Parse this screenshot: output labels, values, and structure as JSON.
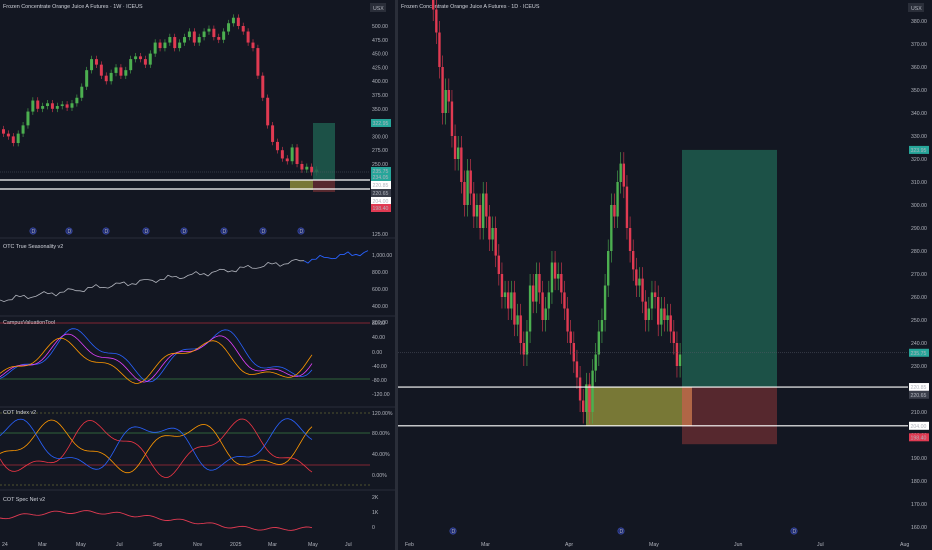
{
  "colors": {
    "background": "#131722",
    "grid": "#1e222d",
    "up": "#4caf50",
    "down": "#e03a52",
    "long_tp": "#1f5c4e",
    "long_sl": "#5e2a30",
    "entry_zone": "#8b8a3a",
    "seasonality": "#b2b5be",
    "seasonality_future": "#2962ff",
    "purple": "#e040fb",
    "orange": "#ff9800",
    "white": "#ffffff",
    "red_line": "#f23645",
    "green_line": "#4caf50",
    "blue_line": "#2962ff"
  },
  "left_panel": {
    "title": "Frozen Concentrate Orange Juice A Futures · 1W · ICEUS",
    "currency": "USX",
    "price_axis": [
      "500.00",
      "475.00",
      "450.00",
      "425.00",
      "400.00",
      "375.00",
      "350.00",
      "325.00",
      "300.00",
      "275.00",
      "250.00"
    ],
    "price_tags": [
      {
        "text": "322.95",
        "kind": "green"
      },
      {
        "text": "235.75",
        "kind": "green"
      },
      {
        "text": "234.05",
        "kind": "green"
      },
      {
        "text": "220.85",
        "kind": "white"
      },
      {
        "text": "220.65",
        "kind": "gray"
      },
      {
        "text": "204.00",
        "kind": "white"
      },
      {
        "text": "198.40",
        "kind": "red"
      }
    ],
    "indicators": [
      {
        "name": "OTC True Seasonality v2",
        "axis": [
          "1,000.00",
          "800.00",
          "600.00",
          "400.00",
          "200.00",
          "0.00"
        ],
        "top_label": "125.00"
      },
      {
        "name": "CampusValuationTool",
        "axis": [
          "80.00",
          "40.00",
          "0.00",
          "-40.00",
          "-80.00",
          "-120.00"
        ]
      },
      {
        "name": "COT Index v2",
        "axis": [
          "120.00%",
          "80.00%",
          "40.00%",
          "0.00%"
        ]
      },
      {
        "name": "COT Spec Net v2",
        "axis": [
          "2K",
          "1K",
          "0"
        ]
      }
    ],
    "time_axis": [
      "24",
      "Mar",
      "May",
      "Jul",
      "Sep",
      "Nov",
      "2025",
      "Mar",
      "May",
      "Jul"
    ]
  },
  "right_panel": {
    "title": "Frozen Concentrate Orange Juice A Futures · 1D · ICEUS",
    "currency": "USX",
    "price_axis": [
      "380.00",
      "370.00",
      "360.00",
      "350.00",
      "340.00",
      "330.00",
      "320.00",
      "310.00",
      "300.00",
      "290.00",
      "280.00",
      "270.00",
      "260.00",
      "250.00",
      "240.00",
      "230.00",
      "220.00",
      "210.00",
      "200.00",
      "190.00",
      "180.00",
      "170.00",
      "160.00"
    ],
    "price_tags": [
      {
        "text": "323.95",
        "kind": "green"
      },
      {
        "text": "235.75",
        "kind": "green"
      },
      {
        "text": "220.85",
        "kind": "white"
      },
      {
        "text": "220.65",
        "kind": "gray"
      },
      {
        "text": "204.00",
        "kind": "white"
      },
      {
        "text": "198.40",
        "kind": "red"
      }
    ],
    "time_axis": [
      "Feb",
      "Mar",
      "Apr",
      "May",
      "Jun",
      "Jul",
      "Aug"
    ]
  },
  "event_marker_label": "D",
  "chart_data": [
    {
      "type": "candlestick",
      "title": "Frozen Concentrate Orange Juice A Futures · 1W · ICEUS",
      "ylim": [
        230,
        525
      ],
      "levels": [
        220.85,
        204.0
      ],
      "trade_box": {
        "entry": 220.85,
        "target": 322.95,
        "stop": 198.4
      },
      "closes": [
        305,
        300,
        288,
        305,
        320,
        345,
        365,
        350,
        355,
        360,
        350,
        355,
        358,
        352,
        360,
        370,
        390,
        420,
        440,
        430,
        410,
        400,
        415,
        425,
        410,
        420,
        440,
        445,
        440,
        430,
        450,
        470,
        460,
        470,
        480,
        460,
        470,
        480,
        490,
        470,
        480,
        490,
        495,
        480,
        475,
        490,
        505,
        515,
        500,
        490,
        470,
        460,
        410,
        370,
        320,
        290,
        275,
        260,
        255,
        280,
        250,
        240,
        245,
        235,
        240
      ]
    },
    {
      "type": "candlestick",
      "title": "Frozen Concentrate Orange Juice A Futures · 1D · ICEUS",
      "ylim": [
        155,
        385
      ],
      "levels": [
        220.85,
        204.0
      ],
      "trade_box": {
        "entry": 220.85,
        "target": 323.95,
        "stop": 198.4
      },
      "closes": [
        385,
        375,
        360,
        340,
        350,
        345,
        330,
        320,
        325,
        310,
        300,
        315,
        305,
        295,
        300,
        290,
        305,
        295,
        285,
        290,
        278,
        270,
        260,
        262,
        255,
        262,
        248,
        252,
        240,
        235,
        245,
        265,
        258,
        270,
        262,
        250,
        255,
        262,
        275,
        268,
        270,
        262,
        255,
        245,
        240,
        232,
        225,
        215,
        210,
        222,
        210,
        228,
        235,
        245,
        250,
        265,
        280,
        300,
        295,
        310,
        318,
        308,
        290,
        280,
        272,
        265,
        268,
        258,
        250,
        255,
        262,
        260,
        248,
        255,
        250,
        252,
        245,
        240,
        230,
        235
      ]
    }
  ]
}
